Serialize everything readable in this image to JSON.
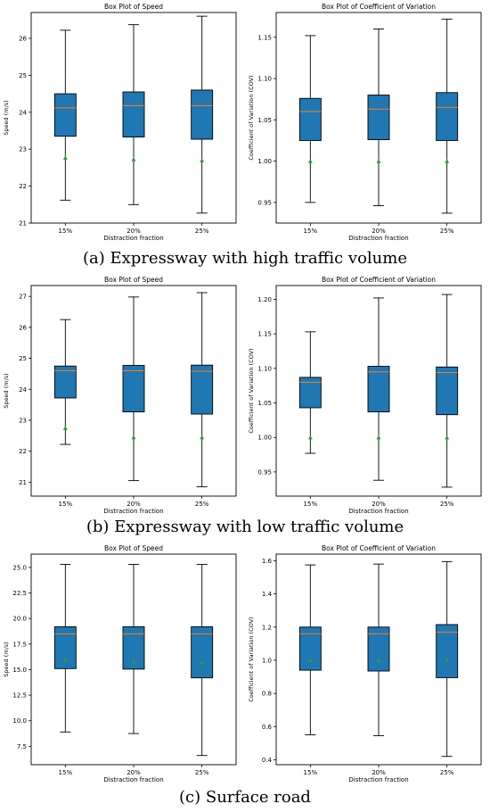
{
  "captions": {
    "a": "(a) Expressway with high traffic volume",
    "b": "(b) Expressway with low traffic volume",
    "c": "(c) Surface road"
  },
  "colors": {
    "box": "#1f77b4",
    "median": "#ff7f0e",
    "mean": "#2ca02c",
    "whisker": "#000000"
  },
  "chart_data": [
    {
      "type": "box",
      "panel": "a-left",
      "title": "Box Plot of Speed",
      "xlabel": "Distraction fraction",
      "ylabel": "Speed (m/s)",
      "categories": [
        "15%",
        "20%",
        "25%"
      ],
      "ylim": [
        21,
        26.7
      ],
      "yticks": [
        21,
        22,
        23,
        24,
        25,
        26
      ],
      "boxes": [
        {
          "min": 21.62,
          "q1": 23.35,
          "median": 24.12,
          "q3": 24.5,
          "max": 26.22,
          "mean": 22.77
        },
        {
          "min": 21.5,
          "q1": 23.33,
          "median": 24.18,
          "q3": 24.55,
          "max": 26.37,
          "mean": 22.73
        },
        {
          "min": 21.27,
          "q1": 23.27,
          "median": 24.18,
          "q3": 24.6,
          "max": 26.6,
          "mean": 22.7
        }
      ]
    },
    {
      "type": "box",
      "panel": "a-right",
      "title": "Box Plot of Coefficient of Variation",
      "xlabel": "Distraction fraction",
      "ylabel": "Coefficient of Variation (COV)",
      "categories": [
        "15%",
        "20%",
        "25%"
      ],
      "ylim": [
        0.925,
        1.18
      ],
      "yticks": [
        0.95,
        1.0,
        1.05,
        1.1,
        1.15
      ],
      "ytick_labels": [
        "0.95",
        "1.00",
        "1.05",
        "1.10",
        "1.15"
      ],
      "boxes": [
        {
          "min": 0.95,
          "q1": 1.025,
          "median": 1.06,
          "q3": 1.076,
          "max": 1.152,
          "mean": 1.0
        },
        {
          "min": 0.946,
          "q1": 1.026,
          "median": 1.063,
          "q3": 1.08,
          "max": 1.16,
          "mean": 1.0
        },
        {
          "min": 0.937,
          "q1": 1.025,
          "median": 1.065,
          "q3": 1.083,
          "max": 1.172,
          "mean": 1.0
        }
      ]
    },
    {
      "type": "box",
      "panel": "b-left",
      "title": "Box Plot of Speed",
      "xlabel": "Distraction fraction",
      "ylabel": "Speed (m/s)",
      "categories": [
        "15%",
        "20%",
        "25%"
      ],
      "ylim": [
        20.55,
        27.35
      ],
      "yticks": [
        21,
        22,
        23,
        24,
        25,
        26,
        27
      ],
      "boxes": [
        {
          "min": 22.22,
          "q1": 23.72,
          "median": 24.6,
          "q3": 24.75,
          "max": 26.25,
          "mean": 22.75
        },
        {
          "min": 21.05,
          "q1": 23.27,
          "median": 24.6,
          "q3": 24.77,
          "max": 26.98,
          "mean": 22.45
        },
        {
          "min": 20.85,
          "q1": 23.2,
          "median": 24.58,
          "q3": 24.78,
          "max": 27.12,
          "mean": 22.45
        }
      ]
    },
    {
      "type": "box",
      "panel": "b-right",
      "title": "Box Plot of Coefficient of Variation",
      "xlabel": "Distraction fraction",
      "ylabel": "Coefficient of Variation (COV)",
      "categories": [
        "15%",
        "20%",
        "25%"
      ],
      "ylim": [
        0.915,
        1.22
      ],
      "yticks": [
        0.95,
        1.0,
        1.05,
        1.1,
        1.15,
        1.2
      ],
      "ytick_labels": [
        "0.95",
        "1.00",
        "1.05",
        "1.10",
        "1.15",
        "1.20"
      ],
      "boxes": [
        {
          "min": 0.977,
          "q1": 1.043,
          "median": 1.08,
          "q3": 1.087,
          "max": 1.153,
          "mean": 1.0
        },
        {
          "min": 0.938,
          "q1": 1.037,
          "median": 1.095,
          "q3": 1.103,
          "max": 1.202,
          "mean": 1.0
        },
        {
          "min": 0.928,
          "q1": 1.033,
          "median": 1.094,
          "q3": 1.102,
          "max": 1.207,
          "mean": 1.0
        }
      ]
    },
    {
      "type": "box",
      "panel": "c-left",
      "title": "Box Plot of Speed",
      "xlabel": "Distraction fraction",
      "ylabel": "Speed (m/s)",
      "categories": [
        "15%",
        "20%",
        "25%"
      ],
      "ylim": [
        5.7,
        26.3
      ],
      "yticks": [
        7.5,
        10,
        12.5,
        15,
        17.5,
        20,
        22.5,
        25
      ],
      "ytick_labels": [
        "7.5",
        "10.0",
        "12.5",
        "15.0",
        "17.5",
        "20.0",
        "22.5",
        "25.0"
      ],
      "boxes": [
        {
          "min": 8.9,
          "q1": 15.1,
          "median": 18.5,
          "q3": 19.2,
          "max": 25.3,
          "mean": 16.0
        },
        {
          "min": 8.75,
          "q1": 15.05,
          "median": 18.5,
          "q3": 19.2,
          "max": 25.3,
          "mean": 15.8
        },
        {
          "min": 6.6,
          "q1": 14.2,
          "median": 18.5,
          "q3": 19.2,
          "max": 25.3,
          "mean": 15.7
        }
      ]
    },
    {
      "type": "box",
      "panel": "c-right",
      "title": "Box Plot of Coefficient of Variation",
      "xlabel": "Distraction fraction",
      "ylabel": "Coefficient of Variation (COV)",
      "categories": [
        "15%",
        "20%",
        "25%"
      ],
      "ylim": [
        0.37,
        1.64
      ],
      "yticks": [
        0.4,
        0.6,
        0.8,
        1.0,
        1.2,
        1.4,
        1.6
      ],
      "ytick_labels": [
        "0.4",
        "0.6",
        "0.8",
        "1.0",
        "1.2",
        "1.4",
        "1.6"
      ],
      "boxes": [
        {
          "min": 0.55,
          "q1": 0.94,
          "median": 1.16,
          "q3": 1.2,
          "max": 1.575,
          "mean": 1.0
        },
        {
          "min": 0.545,
          "q1": 0.935,
          "median": 1.16,
          "q3": 1.2,
          "max": 1.58,
          "mean": 1.0
        },
        {
          "min": 0.42,
          "q1": 0.895,
          "median": 1.17,
          "q3": 1.215,
          "max": 1.595,
          "mean": 1.0
        }
      ]
    }
  ]
}
